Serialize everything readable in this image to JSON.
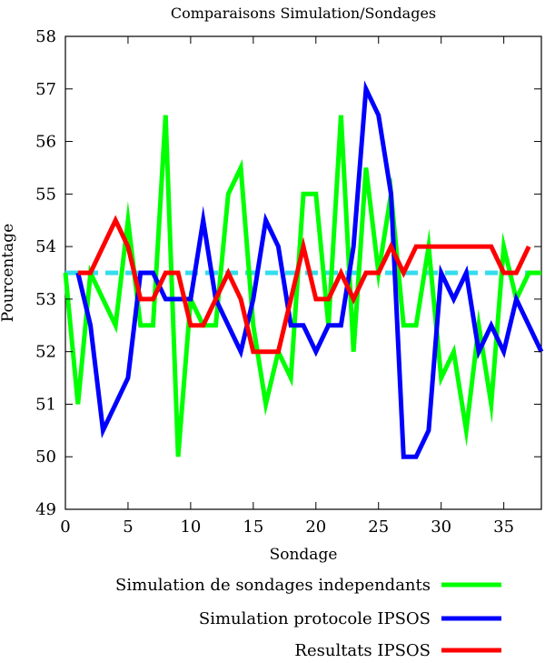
{
  "chart_data": {
    "type": "line",
    "title": "Comparaisons Simulation/Sondages",
    "xlabel": "Sondage",
    "ylabel": "Pourcentage",
    "xlim": [
      0,
      38
    ],
    "ylim": [
      49,
      58
    ],
    "xticks": [
      0,
      5,
      10,
      15,
      20,
      25,
      30,
      35
    ],
    "yticks": [
      49,
      50,
      51,
      52,
      53,
      54,
      55,
      56,
      57,
      58
    ],
    "legend_position": "bottom",
    "reference_line": {
      "y": 53.5,
      "color": "#33ddee",
      "style": "dashed"
    },
    "series": [
      {
        "name": "Simulation de sondages independants",
        "color": "#00ff00",
        "x": [
          0,
          1,
          2,
          3,
          4,
          5,
          6,
          7,
          8,
          9,
          10,
          11,
          12,
          13,
          14,
          15,
          16,
          17,
          18,
          19,
          20,
          21,
          22,
          23,
          24,
          25,
          26,
          27,
          28,
          29,
          30,
          31,
          32,
          33,
          34,
          35,
          36,
          37,
          38
        ],
        "y": [
          53.5,
          51,
          53.5,
          53,
          52.5,
          54.5,
          52.5,
          52.5,
          56.5,
          50,
          53,
          52.5,
          52.5,
          55,
          55.5,
          52.5,
          51,
          52,
          51.5,
          55,
          55,
          52.5,
          56.5,
          52,
          55.5,
          53.5,
          55,
          52.5,
          52.5,
          54,
          51.5,
          52,
          50.5,
          52.5,
          51,
          54,
          53,
          53.5,
          53.5
        ]
      },
      {
        "name": "Simulation  protocole IPSOS",
        "color": "#0000ff",
        "x": [
          1,
          2,
          3,
          4,
          5,
          6,
          7,
          8,
          9,
          10,
          11,
          12,
          13,
          14,
          15,
          16,
          17,
          18,
          19,
          20,
          21,
          22,
          23,
          24,
          25,
          26,
          27,
          28,
          29,
          30,
          31,
          32,
          33,
          34,
          35,
          36,
          37,
          38
        ],
        "y": [
          53.5,
          52.5,
          50.5,
          51,
          51.5,
          53.5,
          53.5,
          53,
          53,
          53,
          54.5,
          53,
          52.5,
          52,
          53,
          54.5,
          54,
          52.5,
          52.5,
          52,
          52.5,
          52.5,
          54,
          57,
          56.5,
          55,
          50,
          50,
          50.5,
          53.5,
          53,
          53.5,
          52,
          52.5,
          52,
          53,
          52.5,
          52
        ]
      },
      {
        "name": "Resultats IPSOS",
        "color": "#ff0000",
        "x": [
          1,
          2,
          3,
          4,
          5,
          6,
          7,
          8,
          9,
          10,
          11,
          12,
          13,
          14,
          15,
          16,
          17,
          18,
          19,
          20,
          21,
          22,
          23,
          24,
          25,
          26,
          27,
          28,
          29,
          30,
          31,
          32,
          33,
          34,
          35,
          36,
          37
        ],
        "y": [
          53.5,
          53.5,
          54,
          54.5,
          54,
          53,
          53,
          53.5,
          53.5,
          52.5,
          52.5,
          53,
          53.5,
          53,
          52,
          52,
          52,
          53,
          54,
          53,
          53,
          53.5,
          53,
          53.5,
          53.5,
          54,
          53.5,
          54,
          54,
          54,
          54,
          54,
          54,
          54,
          53.5,
          53.5,
          54
        ]
      }
    ]
  }
}
